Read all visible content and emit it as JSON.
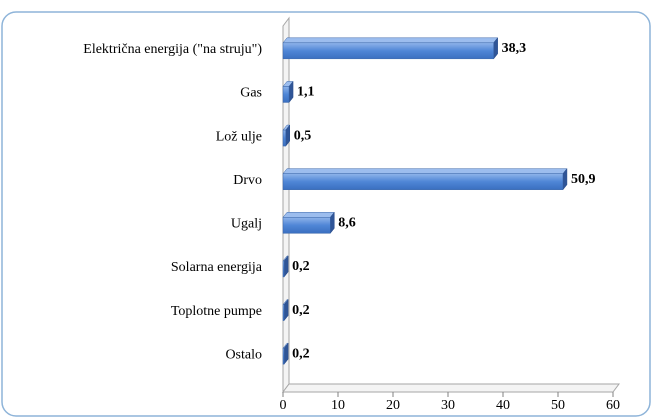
{
  "chart_data": {
    "type": "bar",
    "orientation": "horizontal",
    "categories": [
      "Električna energija  (\"na struju\")",
      "Gas",
      "Lož ulje",
      "Drvo",
      "Ugalj",
      "Solarna  energija",
      "Toplotne pumpe",
      "Ostalo"
    ],
    "values": [
      38.3,
      1.1,
      0.5,
      50.9,
      8.6,
      0.2,
      0.2,
      0.2
    ],
    "value_labels": [
      "38,3",
      "1,1",
      "0,5",
      "50,9",
      "8,6",
      "0,2",
      "0,2",
      "0,2"
    ],
    "color": "#4f86d6",
    "xlim": [
      0,
      60
    ],
    "xticks": [
      0,
      10,
      20,
      30,
      40,
      50,
      60
    ]
  }
}
